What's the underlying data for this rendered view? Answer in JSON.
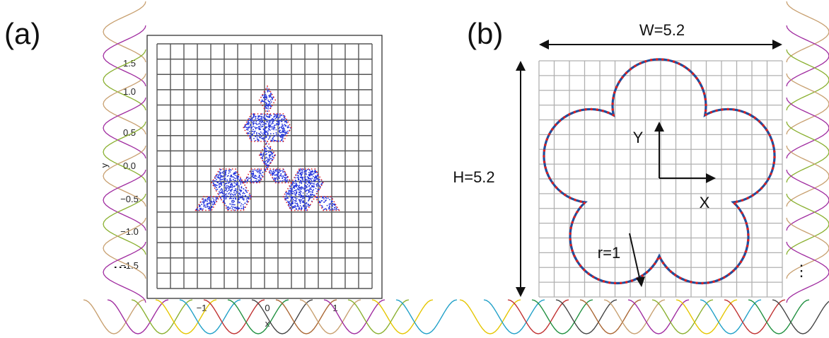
{
  "panels": [
    {
      "label": "(a)",
      "xlabel": "x",
      "ylabel": "y",
      "xticks": [
        "−1",
        "0",
        "1"
      ],
      "yticks": [
        "1.5",
        "1.0",
        "0.5",
        "0.0",
        "−0.5",
        "−1.0",
        "−1.5"
      ],
      "ellipsis": "⋮"
    },
    {
      "label": "(b)",
      "width_label": "W=5.2",
      "height_label": "H=5.2",
      "x_axis_label": "X",
      "y_axis_label": "Y",
      "radius_label": "r=1",
      "ellipsis": "⋮"
    }
  ],
  "colors": {
    "grid_a": "#555555",
    "grid_b": "#b0b0b0",
    "points": "#2233dd",
    "boundary": "#e02020",
    "curve_b": "#1f4e9c",
    "curve_palette": [
      "#c8a070",
      "#a02ca0",
      "#8ab030",
      "#e5c600",
      "#20a0c8",
      "#c03030",
      "#209040",
      "#444444",
      "#aa6633"
    ]
  }
}
